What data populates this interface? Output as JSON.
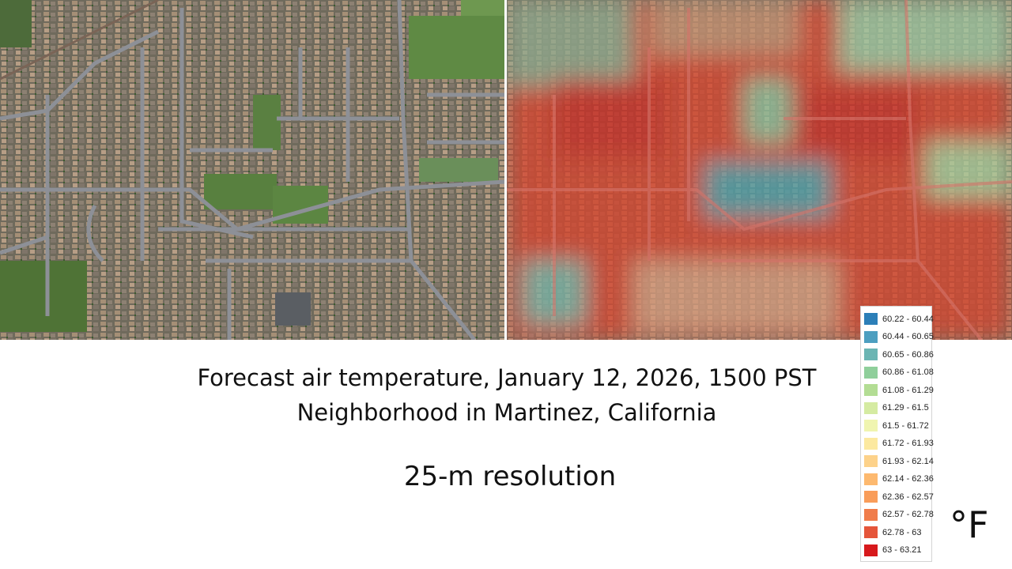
{
  "caption": {
    "title": "Forecast air temperature, January 12, 2026, 1500 PST",
    "subtitle": "Neighborhood in Martinez, California",
    "resolution": "25-m resolution"
  },
  "legend": {
    "unit": "°F",
    "items": [
      {
        "label": "60.22 - 60.44",
        "color": "#2c7fb8"
      },
      {
        "label": "60.44 - 60.65",
        "color": "#4d9fc0"
      },
      {
        "label": "60.65 - 60.86",
        "color": "#6bb5b3"
      },
      {
        "label": "60.86 - 61.08",
        "color": "#8fcf9b"
      },
      {
        "label": "61.08 - 61.29",
        "color": "#b3dd94"
      },
      {
        "label": "61.29 - 61.5",
        "color": "#d5eba2"
      },
      {
        "label": "61.5 - 61.72",
        "color": "#f0f5b0"
      },
      {
        "label": "61.72 - 61.93",
        "color": "#fce9a0"
      },
      {
        "label": "61.93 - 62.14",
        "color": "#fdd28a"
      },
      {
        "label": "62.14 - 62.36",
        "color": "#fdb96f"
      },
      {
        "label": "62.36 - 62.57",
        "color": "#f99d5a"
      },
      {
        "label": "62.57 - 62.78",
        "color": "#f07c4a"
      },
      {
        "label": "62.78 - 63",
        "color": "#e5553a"
      },
      {
        "label": "63 - 63.21",
        "color": "#d7191c"
      }
    ]
  }
}
